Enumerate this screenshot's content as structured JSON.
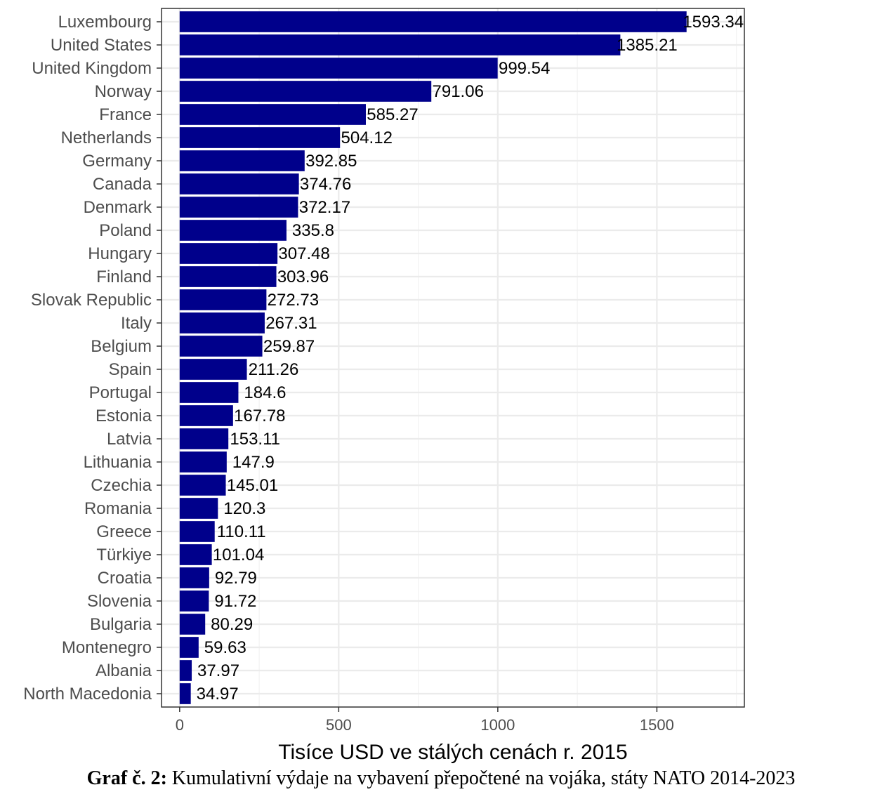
{
  "chart_data": {
    "type": "bar",
    "orientation": "horizontal",
    "categories": [
      "Luxembourg",
      "United States",
      "United Kingdom",
      "Norway",
      "France",
      "Netherlands",
      "Germany",
      "Canada",
      "Denmark",
      "Poland",
      "Hungary",
      "Finland",
      "Slovak Republic",
      "Italy",
      "Belgium",
      "Spain",
      "Portugal",
      "Estonia",
      "Latvia",
      "Lithuania",
      "Czechia",
      "Romania",
      "Greece",
      "Türkiye",
      "Croatia",
      "Slovenia",
      "Bulgaria",
      "Montenegro",
      "Albania",
      "North Macedonia"
    ],
    "values": [
      1593.34,
      1385.21,
      999.54,
      791.06,
      585.27,
      504.12,
      392.85,
      374.76,
      372.17,
      335.8,
      307.48,
      303.96,
      272.73,
      267.31,
      259.87,
      211.26,
      184.6,
      167.78,
      153.11,
      147.9,
      145.01,
      120.3,
      110.11,
      101.04,
      92.79,
      91.72,
      80.29,
      59.63,
      37.97,
      34.97
    ],
    "value_labels": [
      "1593.34",
      "1385.21",
      "999.54",
      "791.06",
      "585.27",
      "504.12",
      "392.85",
      "374.76",
      "372.17",
      "335.8",
      "307.48",
      "303.96",
      "272.73",
      "267.31",
      "259.87",
      "211.26",
      "184.6",
      "167.78",
      "153.11",
      "147.9",
      "145.01",
      "120.3",
      "110.11",
      "101.04",
      "92.79",
      "91.72",
      "80.29",
      "59.63",
      "37.97",
      "34.97"
    ],
    "xlabel": "Tisíce USD ve stálých cenách r. 2015",
    "ylabel": "",
    "xlim": [
      -57,
      1775
    ],
    "xticks": [
      0,
      500,
      1000,
      1500
    ],
    "xtick_labels": [
      "0",
      "500",
      "1000",
      "1500"
    ],
    "grid": true,
    "bar_color": "#00008b"
  },
  "caption": {
    "label": "Graf č. 2:",
    "text": " Kumulativní výdaje na vybavení přepočtené na vojáka, státy NATO 2014-2023"
  }
}
